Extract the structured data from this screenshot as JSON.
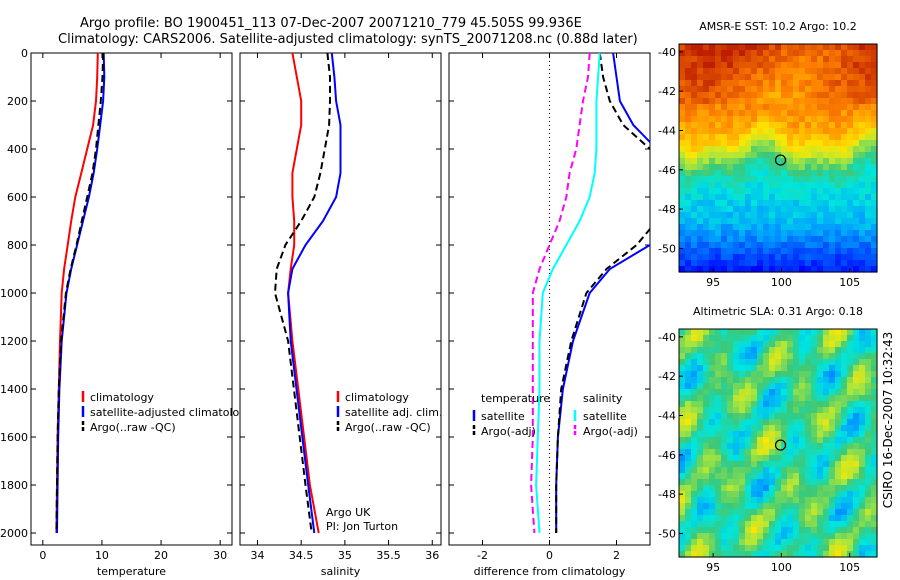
{
  "header": {
    "line1": "Argo profile: BO 1900451_113 07-Dec-2007 20071210_779 45.505S 99.936E",
    "line2": "Climatology: CARS2006. Satellite-adjusted climatology: synTS_20071208.nc (0.88d later)"
  },
  "credit": "CSIRO 16-Dec-2007 10:32:43",
  "colors": {
    "red": "#ff0000",
    "blue": "#0000ff",
    "black": "#000000",
    "cyan": "#00ffff",
    "magenta": "#ff00ff"
  },
  "chart_data": [
    {
      "type": "line",
      "xlabel": "temperature",
      "xlim": [
        -2,
        32
      ],
      "ylim": [
        0,
        2050
      ],
      "xticks": [
        0,
        10,
        20,
        30
      ],
      "yticks": [
        0,
        200,
        400,
        600,
        800,
        1000,
        1200,
        1400,
        1600,
        1800,
        2000
      ],
      "legend": [
        "climatology",
        "satellite-adjusted climatology",
        "Argo(..raw -QC)"
      ],
      "series": [
        {
          "name": "climatology",
          "color": "red",
          "dash": "solid",
          "x": [
            9.3,
            9.2,
            9.0,
            8.5,
            7.5,
            6.5,
            5.5,
            4.8,
            4.2,
            3.6,
            3.2,
            2.9,
            2.7,
            2.5,
            2.4,
            2.3
          ],
          "y": [
            0,
            100,
            200,
            300,
            400,
            500,
            600,
            700,
            800,
            900,
            1000,
            1200,
            1400,
            1600,
            1800,
            2000
          ]
        },
        {
          "name": "satellite-adjusted climatology",
          "color": "blue",
          "dash": "solid",
          "x": [
            10.3,
            10.4,
            10.2,
            9.7,
            9.2,
            8.6,
            7.8,
            6.8,
            5.8,
            4.8,
            4.0,
            3.2,
            2.8,
            2.6,
            2.5,
            2.4
          ],
          "y": [
            0,
            100,
            200,
            300,
            400,
            500,
            600,
            700,
            800,
            900,
            1000,
            1200,
            1400,
            1600,
            1800,
            2000
          ]
        },
        {
          "name": "Argo(..raw -QC)",
          "color": "black",
          "dash": "dash",
          "x": [
            10.2,
            10.1,
            9.8,
            9.4,
            9.0,
            8.4,
            7.5,
            6.6,
            5.7,
            4.7,
            3.9,
            3.1,
            2.7,
            2.5,
            2.4,
            2.3
          ],
          "y": [
            0,
            100,
            200,
            300,
            400,
            500,
            600,
            700,
            800,
            900,
            1000,
            1200,
            1400,
            1600,
            1800,
            2000
          ]
        }
      ]
    },
    {
      "type": "line",
      "xlabel": "salinity",
      "xlim": [
        33.8,
        36.1
      ],
      "ylim": [
        0,
        2050
      ],
      "xticks": [
        34,
        34.5,
        35,
        35.5,
        36
      ],
      "xticklabels": [
        "34",
        "34.5",
        "35",
        "35.5",
        "36"
      ],
      "yticks": [
        0,
        200,
        400,
        600,
        800,
        1000,
        1200,
        1400,
        1600,
        1800,
        2000
      ],
      "legend": [
        "climatology",
        "satellite adj. clim.",
        "Argo(..raw -QC)"
      ],
      "annotation": [
        "Argo UK",
        "PI: Jon Turton"
      ],
      "series": [
        {
          "name": "climatology",
          "color": "red",
          "dash": "solid",
          "x": [
            34.4,
            34.45,
            34.5,
            34.5,
            34.45,
            34.4,
            34.4,
            34.42,
            34.42,
            34.38,
            34.35,
            34.4,
            34.5,
            34.6,
            34.7
          ],
          "y": [
            0,
            100,
            200,
            300,
            400,
            500,
            600,
            700,
            800,
            900,
            1000,
            1200,
            1500,
            1800,
            2000
          ]
        },
        {
          "name": "satellite adj. clim.",
          "color": "blue",
          "dash": "solid",
          "x": [
            34.85,
            34.88,
            34.9,
            34.95,
            34.95,
            34.95,
            34.9,
            34.75,
            34.55,
            34.4,
            34.35,
            34.38,
            34.48,
            34.58,
            34.65
          ],
          "y": [
            0,
            100,
            200,
            300,
            400,
            500,
            600,
            700,
            800,
            900,
            1000,
            1200,
            1500,
            1800,
            2000
          ]
        },
        {
          "name": "Argo(..raw -QC)",
          "color": "black",
          "dash": "dash",
          "x": [
            34.8,
            34.83,
            34.83,
            34.82,
            34.77,
            34.72,
            34.65,
            34.5,
            34.32,
            34.22,
            34.2,
            34.35,
            34.45,
            34.55,
            34.62
          ],
          "y": [
            0,
            100,
            200,
            300,
            400,
            500,
            600,
            700,
            800,
            900,
            1000,
            1200,
            1500,
            1800,
            2000
          ]
        }
      ]
    },
    {
      "type": "line",
      "xlabel": "difference from climatology",
      "xlim": [
        -3,
        3
      ],
      "ylim": [
        0,
        2050
      ],
      "xticks": [
        -2,
        0,
        2
      ],
      "yticks": [
        0,
        200,
        400,
        600,
        800,
        1000,
        1200,
        1400,
        1600,
        1800,
        2000
      ],
      "zero_line": true,
      "legend_temperature": {
        "title": "temperature",
        "items": [
          "satellite",
          "Argo(-adj)"
        ]
      },
      "legend_salinity": {
        "title": "salinity",
        "items": [
          "satellite",
          "Argo(-adj)"
        ]
      },
      "series": [
        {
          "name": "temperature satellite",
          "color": "blue",
          "dash": "solid",
          "x": [
            1.9,
            2.0,
            2.1,
            2.5,
            3.2,
            3.8,
            4.0,
            3.5,
            3.0,
            1.8,
            1.2,
            0.7,
            0.4,
            0.25,
            0.2,
            0.2
          ],
          "y": [
            0,
            100,
            200,
            300,
            400,
            500,
            600,
            700,
            800,
            900,
            1000,
            1200,
            1400,
            1600,
            1800,
            2000
          ]
        },
        {
          "name": "temperature Argo(-adj)",
          "color": "black",
          "dash": "dash",
          "x": [
            1.5,
            1.6,
            1.8,
            2.2,
            3.0,
            3.5,
            3.8,
            3.2,
            2.6,
            1.7,
            1.1,
            0.65,
            0.35,
            0.25,
            0.2,
            0.2
          ],
          "y": [
            0,
            100,
            200,
            300,
            400,
            500,
            600,
            700,
            800,
            900,
            1000,
            1200,
            1400,
            1600,
            1800,
            2000
          ]
        },
        {
          "name": "salinity satellite",
          "color": "cyan",
          "dash": "solid",
          "x": [
            1.5,
            1.45,
            1.4,
            1.4,
            1.4,
            1.35,
            1.2,
            0.9,
            0.5,
            0.1,
            -0.2,
            -0.3,
            -0.3,
            -0.35,
            -0.4,
            -0.3
          ],
          "y": [
            0,
            100,
            200,
            300,
            400,
            500,
            600,
            700,
            800,
            900,
            1000,
            1200,
            1400,
            1600,
            1800,
            2000
          ]
        },
        {
          "name": "salinity Argo(-adj)",
          "color": "magenta",
          "dash": "dash",
          "x": [
            1.2,
            1.15,
            1.0,
            0.9,
            0.8,
            0.6,
            0.5,
            0.3,
            0.0,
            -0.3,
            -0.5,
            -0.5,
            -0.5,
            -0.5,
            -0.55,
            -0.45
          ],
          "y": [
            0,
            100,
            200,
            300,
            400,
            500,
            600,
            700,
            800,
            900,
            1000,
            1200,
            1400,
            1600,
            1800,
            2000
          ]
        }
      ]
    },
    {
      "type": "heatmap",
      "title": "AMSR-E SST: 10.2 Argo: 10.2",
      "xlim": [
        92.5,
        107
      ],
      "ylim": [
        -51.2,
        -39.6
      ],
      "xticks": [
        95,
        100,
        105
      ],
      "yticks": [
        -40,
        -42,
        -44,
        -46,
        -48,
        -50
      ],
      "marker": {
        "lon": 99.936,
        "lat": -45.505
      }
    },
    {
      "type": "heatmap",
      "title": "Altimetric SLA: 0.31 Argo: 0.18",
      "xlim": [
        92.5,
        107
      ],
      "ylim": [
        -51.2,
        -39.6
      ],
      "xticks": [
        95,
        100,
        105
      ],
      "yticks": [
        -40,
        -42,
        -44,
        -46,
        -48,
        -50
      ],
      "marker": {
        "lon": 99.936,
        "lat": -45.505
      }
    }
  ]
}
